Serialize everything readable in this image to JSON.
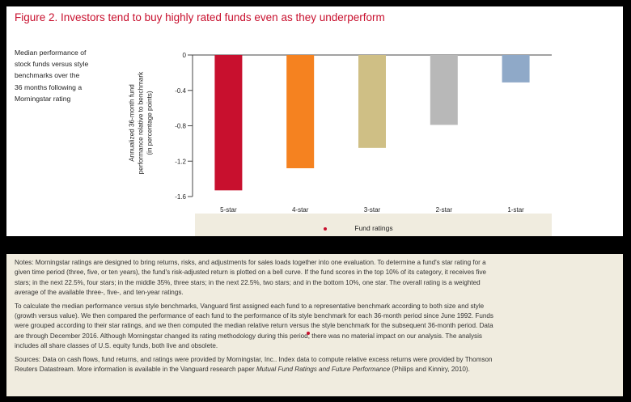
{
  "figure": {
    "title": "Figure 2. Investors tend to buy highly rated funds even as they underperform",
    "description_lines": [
      "Median performance of",
      "stock funds versus style",
      "benchmarks over the",
      "36 months following a",
      "Morningstar rating"
    ]
  },
  "chart_data": {
    "type": "bar",
    "categories": [
      "5-star",
      "4-star",
      "3-star",
      "2-star",
      "1-star"
    ],
    "values": [
      -1.53,
      -1.28,
      -1.05,
      -0.79,
      -0.31
    ],
    "colors": [
      "#c8102e",
      "#f58220",
      "#cfbf85",
      "#b8b8b8",
      "#8fa9c8"
    ],
    "ylabel_lines": [
      "Annualized 36-month fund",
      "performance relative to benchmark",
      "(in percentage points)"
    ],
    "xlabel": "Fund ratings",
    "yticks": [
      0,
      -0.4,
      -0.8,
      -1.2,
      -1.6
    ],
    "ytick_labels": [
      "0",
      "-0.4",
      "-0.8",
      "-1.2",
      "-1.6"
    ],
    "ylim": [
      -1.6,
      0
    ],
    "grid": false
  },
  "notes": {
    "paragraphs": [
      [
        "Notes: Morningstar ratings are designed to bring returns, risks, and adjustments for sales loads together into one evaluation. To determine a fund's star rating for a",
        "given time period (three, five, or ten years), the fund's risk-adjusted return is plotted on a bell curve. If the fund scores in the top 10% of its category, it receives five",
        "stars; in the next 22.5%, four stars; in the middle 35%, three stars; in the next 22.5%, two stars; and in the bottom 10%, one star. The overall rating is a weighted",
        "average of the available three-, five-, and ten-year ratings."
      ],
      [
        "To calculate the median performance versus style benchmarks, Vanguard first assigned each fund to a representative benchmark according to both size and style",
        "(growth versus value). We then compared the performance of each fund to the performance of its style benchmark for each 36-month period since June 1992. Funds",
        "were grouped according to their star ratings, and we then computed the median relative return versus the style benchmark for the subsequent 36-month period. Data",
        "are through December 2016. Although Morningstar changed its rating methodology during this period, there was no material impact on our analysis. The analysis",
        "includes all share classes of U.S. equity funds, both live and obsolete."
      ]
    ],
    "sources_lines": [
      "Sources: Data on cash flows, fund returns, and ratings were provided by Morningstar, Inc.. Index data to compute relative excess returns were provided by Thomson",
      "Reuters Datastream. More information is available in the Vanguard research paper "
    ],
    "sources_italic": "Mutual Fund Ratings and Future Performance",
    "sources_end": " (Philips and Kinniry, 2010)."
  }
}
